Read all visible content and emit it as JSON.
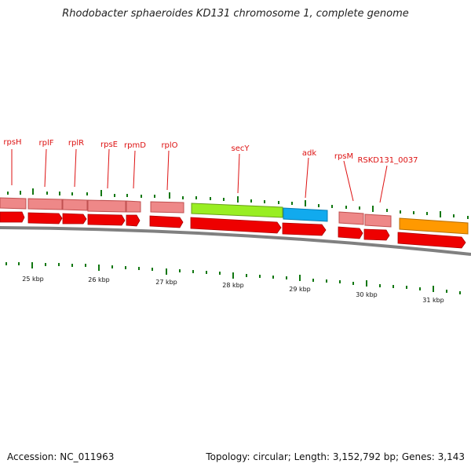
{
  "title": "Rhodobacter sphaeroides KD131 chromosome 1, complete genome",
  "footer": {
    "accession": "Accession: NC_011963",
    "summary": "Topology: circular; Length: 3,152,792 bp; Genes: 3,143"
  },
  "colors": {
    "cds": "#ee0000",
    "gene": "#ee8888",
    "backbone": "#808080",
    "tick": "#117711",
    "label": "#dd1111",
    "highlight_green": "#99ee22",
    "highlight_blue": "#11aaee",
    "highlight_orange": "#ff9900"
  },
  "gene_labels": [
    "rpsH",
    "rplF",
    "rplR",
    "rpsE",
    "rpmD",
    "rplO",
    "secY",
    "adk",
    "rpsM",
    "RSKD131_0037"
  ],
  "kbp_labels": [
    "25 kbp",
    "26 kbp",
    "27 kbp",
    "28 kbp",
    "29 kbp",
    "30 kbp",
    "31 kbp"
  ]
}
